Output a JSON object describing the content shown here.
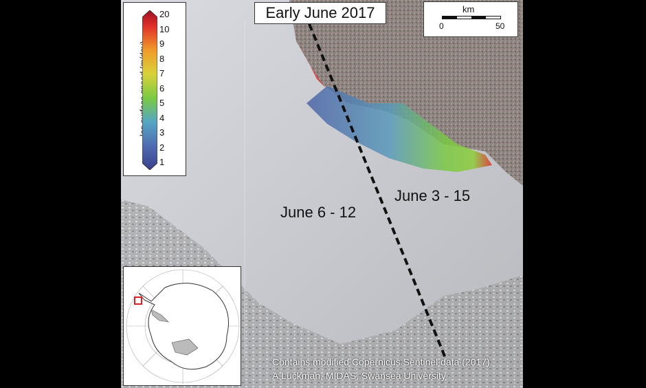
{
  "map": {
    "title": "Early June 2017",
    "scale_bar": {
      "unit": "km",
      "start": "0",
      "end": "50"
    },
    "legend": {
      "title": "Ice surface speed (m/day)",
      "ticks": [
        "20",
        "10",
        "9",
        "8",
        "7",
        "6",
        "5",
        "4",
        "3",
        "2",
        "1"
      ]
    },
    "regions": [
      {
        "label": "June 6 - 12"
      },
      {
        "label": "June 3 - 15"
      }
    ],
    "credits": [
      "Contains modified Copernicus Sentinel data (2017)",
      "A.Luckman, MIDAS, Swansea University"
    ],
    "colors": {
      "rift_line": "#111111",
      "inset_highlight": "#e02020",
      "speed_low": "#4a5aa0",
      "speed_mid": "#7ac943",
      "speed_high": "#e0302a"
    }
  }
}
